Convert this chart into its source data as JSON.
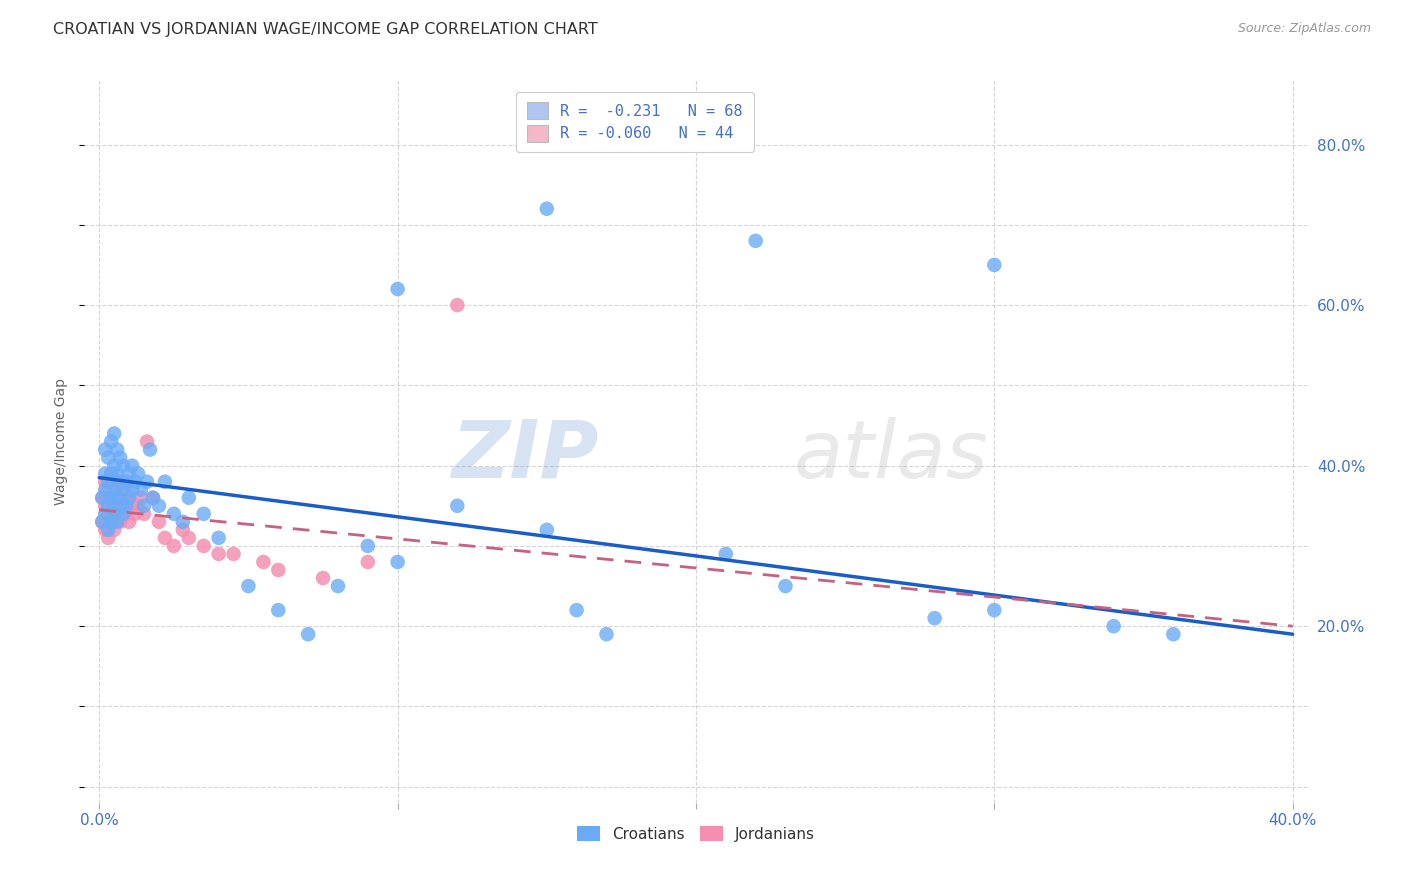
{
  "title": "CROATIAN VS JORDANIAN WAGE/INCOME GAP CORRELATION CHART",
  "source": "Source: ZipAtlas.com",
  "ylabel": "Wage/Income Gap",
  "xlim": [
    -0.005,
    0.405
  ],
  "ylim": [
    -0.02,
    0.88
  ],
  "xticks": [
    0.0,
    0.1,
    0.2,
    0.3,
    0.4
  ],
  "xtick_labels": [
    "0.0%",
    "",
    "",
    "",
    "40.0%"
  ],
  "ytick_vals": [
    0.2,
    0.4,
    0.6,
    0.8
  ],
  "ytick_labels": [
    "20.0%",
    "40.0%",
    "60.0%",
    "80.0%"
  ],
  "watermark_zip": "ZIP",
  "watermark_atlas": "atlas",
  "legend_r1": "R =  -0.231   N = 68",
  "legend_r2": "R = -0.060   N = 44",
  "legend_color1": "#aec6f0",
  "legend_color2": "#f4b8c8",
  "croatian_color": "#6aabf7",
  "jordanian_color": "#f48fb1",
  "croatian_trend_color": "#1a5dc8",
  "jordanian_trend_color": "#c86080",
  "background_color": "#ffffff",
  "title_fontsize": 11.5,
  "source_fontsize": 9,
  "tick_color": "#4472c4",
  "ylabel_color": "#666666",
  "croatians_x": [
    0.001,
    0.001,
    0.002,
    0.002,
    0.002,
    0.002,
    0.003,
    0.003,
    0.003,
    0.003,
    0.004,
    0.004,
    0.004,
    0.004,
    0.005,
    0.005,
    0.005,
    0.005,
    0.006,
    0.006,
    0.006,
    0.006,
    0.007,
    0.007,
    0.007,
    0.008,
    0.008,
    0.008,
    0.009,
    0.009,
    0.01,
    0.01,
    0.011,
    0.011,
    0.012,
    0.013,
    0.014,
    0.015,
    0.016,
    0.017,
    0.018,
    0.02,
    0.022,
    0.025,
    0.028,
    0.03,
    0.035,
    0.04,
    0.05,
    0.06,
    0.07,
    0.08,
    0.09,
    0.1,
    0.12,
    0.15,
    0.16,
    0.17,
    0.21,
    0.23,
    0.28,
    0.3,
    0.34,
    0.36,
    0.3,
    0.22,
    0.15,
    0.1
  ],
  "croatians_y": [
    0.33,
    0.36,
    0.34,
    0.37,
    0.39,
    0.42,
    0.32,
    0.35,
    0.38,
    0.41,
    0.33,
    0.36,
    0.39,
    0.43,
    0.34,
    0.37,
    0.4,
    0.44,
    0.33,
    0.36,
    0.39,
    0.42,
    0.35,
    0.38,
    0.41,
    0.34,
    0.37,
    0.4,
    0.35,
    0.38,
    0.36,
    0.39,
    0.37,
    0.4,
    0.38,
    0.39,
    0.37,
    0.35,
    0.38,
    0.42,
    0.36,
    0.35,
    0.38,
    0.34,
    0.33,
    0.36,
    0.34,
    0.31,
    0.25,
    0.22,
    0.19,
    0.25,
    0.3,
    0.28,
    0.35,
    0.32,
    0.22,
    0.19,
    0.29,
    0.25,
    0.21,
    0.22,
    0.2,
    0.19,
    0.65,
    0.68,
    0.72,
    0.62
  ],
  "jordanians_x": [
    0.001,
    0.001,
    0.002,
    0.002,
    0.002,
    0.003,
    0.003,
    0.003,
    0.004,
    0.004,
    0.004,
    0.005,
    0.005,
    0.005,
    0.006,
    0.006,
    0.007,
    0.007,
    0.008,
    0.008,
    0.009,
    0.009,
    0.01,
    0.01,
    0.011,
    0.012,
    0.013,
    0.014,
    0.015,
    0.016,
    0.018,
    0.02,
    0.022,
    0.025,
    0.028,
    0.03,
    0.035,
    0.04,
    0.045,
    0.055,
    0.06,
    0.075,
    0.09,
    0.12
  ],
  "jordanians_y": [
    0.33,
    0.36,
    0.32,
    0.35,
    0.38,
    0.31,
    0.34,
    0.37,
    0.33,
    0.36,
    0.39,
    0.32,
    0.35,
    0.38,
    0.34,
    0.37,
    0.33,
    0.36,
    0.35,
    0.38,
    0.34,
    0.37,
    0.33,
    0.36,
    0.35,
    0.34,
    0.35,
    0.36,
    0.34,
    0.43,
    0.36,
    0.33,
    0.31,
    0.3,
    0.32,
    0.31,
    0.3,
    0.29,
    0.29,
    0.28,
    0.27,
    0.26,
    0.28,
    0.6
  ],
  "croatian_trend_x": [
    0.0,
    0.4
  ],
  "croatian_trend_y": [
    0.385,
    0.19
  ],
  "jordanian_trend_x": [
    0.0,
    0.4
  ],
  "jordanian_trend_y": [
    0.345,
    0.2
  ]
}
